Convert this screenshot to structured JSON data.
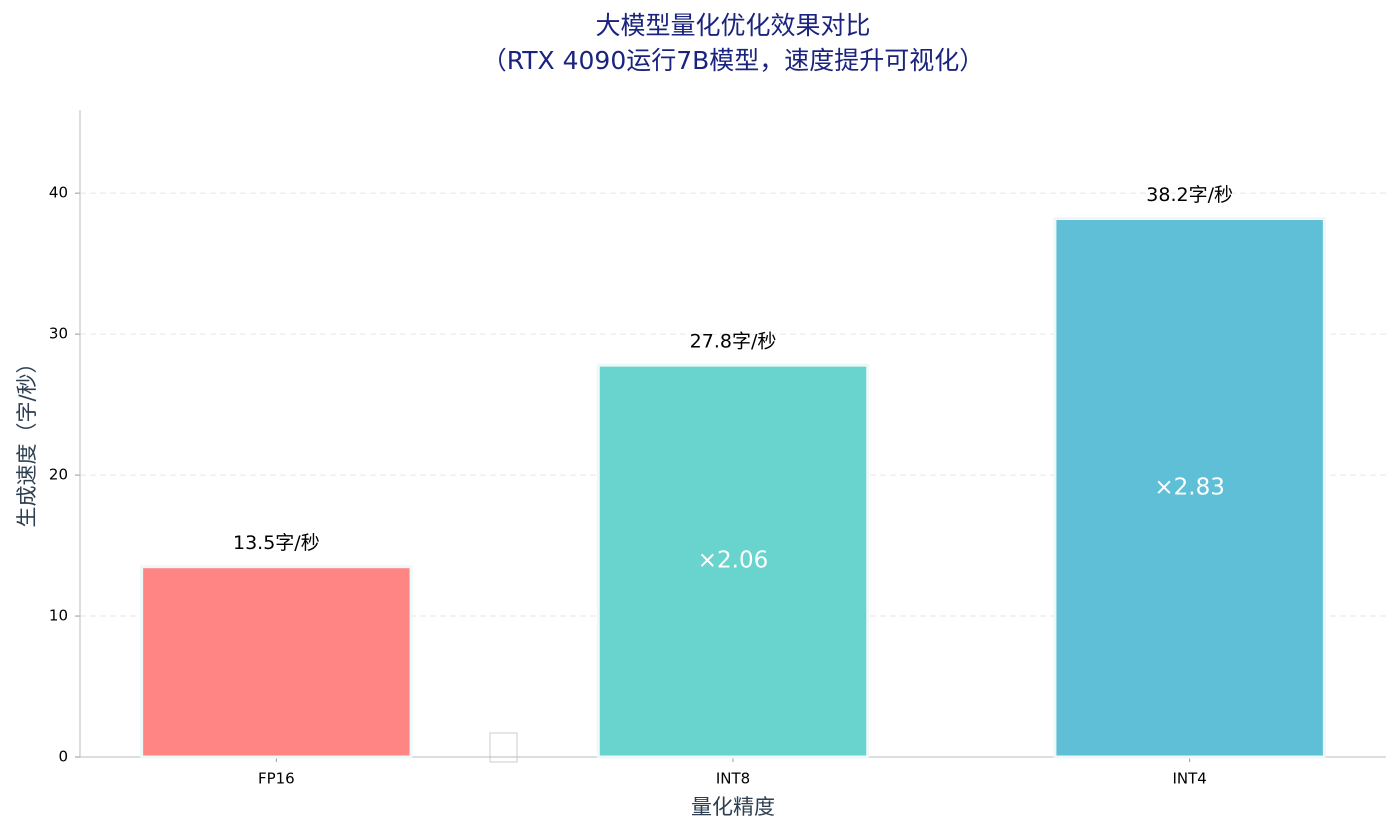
{
  "chart_data": {
    "type": "bar",
    "title": "大模型量化优化效果对比",
    "subtitle": "（RTX 4090运行7B模型，速度提升可视化）",
    "x_label": "量化精度",
    "y_label": "生成速度（字/秒）",
    "categories": [
      "FP16",
      "INT8",
      "INT4"
    ],
    "values": [
      13.5,
      27.8,
      38.2
    ],
    "value_labels": [
      "13.5字/秒",
      "27.8字/秒",
      "38.2字/秒"
    ],
    "speedup_labels": [
      null,
      "×2.06",
      "×2.83"
    ],
    "colors": [
      "#ff8585",
      "#69d4cd",
      "#5fbfd6"
    ],
    "ylim": [
      0,
      45.9
    ],
    "yticks": [
      0,
      10,
      20,
      30,
      40
    ],
    "grid": true
  }
}
